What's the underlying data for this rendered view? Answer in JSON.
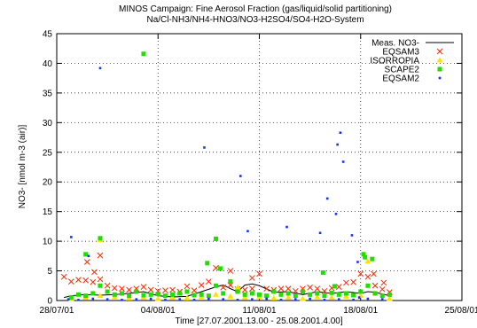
{
  "chart_data": {
    "type": "scatter",
    "title": [
      "MINOS Campaign: Fine Aerosol Fraction  (gas/liquid/solid partitioning)",
      "Na/Cl-NH3/NH4-HNO3/NO3-H2SO4/SO4-H2O-System"
    ],
    "xlabel": "Time [27.07.2001.13.00 - 25.08.2001.4.00]",
    "ylabel": "NO3- [nmol m-3 (air)]",
    "xlim": [
      "28/07/01",
      "25/08/01"
    ],
    "xticks": [
      "28/07/01",
      "04/08/01",
      "11/08/01",
      "18/08/01",
      "25/08/01"
    ],
    "ylim": [
      0,
      45
    ],
    "yticks": [
      0,
      5,
      10,
      15,
      20,
      25,
      30,
      35,
      40,
      45
    ],
    "legend_position": "top-right",
    "series": [
      {
        "name": "Meas. NO3-",
        "style": "line",
        "color": "#000000",
        "x": [
          0.5,
          1.0,
          2.0,
          3.0,
          4.0,
          5.0,
          6.0,
          7.0,
          8.0,
          9.0,
          10.0,
          11.0,
          11.5,
          12.0,
          12.5,
          13.0,
          13.5,
          14.0,
          15.0,
          16.0,
          17.0,
          18.0,
          19.0,
          20.0,
          21.0,
          21.5,
          22.0,
          23.0
        ],
        "y": [
          0.5,
          0.8,
          1.0,
          0.9,
          1.0,
          1.2,
          1.5,
          0.8,
          0.6,
          0.7,
          1.5,
          2.3,
          2.6,
          2.0,
          1.5,
          2.6,
          2.8,
          2.5,
          1.4,
          1.5,
          1.0,
          1.5,
          1.2,
          1.5,
          1.2,
          1.5,
          1.4,
          0.8
        ]
      },
      {
        "name": "EQSAM3",
        "style": "cross",
        "color": "#ff2a00",
        "x": [
          0.5,
          1.0,
          1.5,
          2.0,
          2.5,
          3.0,
          3.5,
          4.0,
          4.5,
          5.0,
          5.5,
          6.0,
          6.5,
          7.0,
          7.5,
          8.0,
          8.5,
          9.0,
          9.5,
          10.0,
          10.5,
          11.0,
          11.5,
          12.0,
          12.5,
          13.0,
          13.5,
          14.0,
          14.5,
          15.0,
          15.5,
          16.0,
          16.5,
          17.0,
          17.5,
          18.0,
          18.5,
          19.0,
          19.5,
          20.0,
          20.5,
          21.0,
          21.5,
          22.0,
          22.5,
          23.0,
          3.0,
          2.1,
          2.6,
          12.0,
          13.5,
          22.6,
          21.9
        ],
        "y": [
          4.0,
          3.2,
          3.5,
          3.4,
          3.1,
          3.6,
          2.5,
          2.1,
          2.0,
          1.8,
          2.0,
          2.3,
          1.8,
          1.6,
          1.7,
          1.8,
          1.5,
          2.4,
          1.7,
          2.6,
          3.2,
          5.5,
          2.2,
          2.6,
          1.9,
          1.8,
          2.0,
          4.5,
          2.0,
          1.8,
          2.0,
          2.0,
          1.6,
          2.0,
          2.2,
          2.0,
          1.6,
          2.1,
          2.3,
          3.0,
          3.1,
          4.5,
          4.0,
          2.5,
          1.9,
          1.4,
          7.6,
          6.5,
          4.8,
          5.0,
          3.8,
          3.0,
          4.5
        ]
      },
      {
        "name": "ISORROPIA",
        "style": "triangle",
        "color": "#ffe000",
        "x": [
          1.0,
          2.0,
          3.0,
          4.0,
          5.0,
          6.0,
          7.0,
          8.0,
          9.0,
          10.0,
          11.0,
          12.0,
          13.0,
          14.0,
          15.0,
          16.0,
          17.0,
          18.0,
          19.0,
          20.0,
          21.0,
          22.0,
          23.0,
          3.0,
          12.5,
          21.5
        ],
        "y": [
          0.3,
          0.5,
          0.8,
          0.6,
          0.4,
          0.5,
          0.3,
          0.5,
          0.4,
          0.6,
          1.0,
          0.7,
          0.5,
          0.6,
          0.4,
          0.5,
          0.3,
          0.6,
          0.5,
          0.7,
          0.8,
          1.2,
          0.3,
          10.2,
          2.2,
          6.6
        ]
      },
      {
        "name": "SCAPE2",
        "style": "square",
        "color": "#22dd00",
        "x": [
          1.0,
          1.5,
          2.0,
          2.5,
          3.0,
          3.5,
          4.0,
          4.5,
          5.0,
          5.5,
          6.0,
          6.5,
          7.0,
          7.5,
          8.0,
          8.5,
          9.0,
          9.5,
          10.0,
          10.5,
          11.0,
          11.5,
          12.0,
          12.5,
          13.0,
          13.5,
          14.0,
          14.5,
          15.0,
          15.5,
          16.0,
          16.5,
          17.0,
          17.5,
          18.0,
          18.5,
          19.0,
          19.5,
          20.0,
          20.5,
          21.0,
          21.5,
          22.0,
          22.5,
          23.0,
          3.0,
          6.0,
          2.0,
          11.0,
          10.4,
          11.3,
          18.4,
          21.3,
          21.8,
          21.2,
          19.2
        ],
        "y": [
          0.5,
          1.0,
          0.8,
          1.2,
          2.5,
          1.5,
          1.0,
          1.2,
          0.8,
          1.5,
          0.9,
          1.0,
          1.1,
          0.8,
          1.0,
          1.2,
          1.5,
          0.9,
          1.0,
          0.8,
          2.5,
          1.2,
          3.2,
          1.5,
          1.0,
          1.2,
          1.0,
          0.8,
          1.5,
          1.0,
          1.2,
          0.8,
          1.5,
          1.0,
          1.2,
          0.8,
          1.3,
          1.0,
          1.2,
          0.9,
          1.5,
          2.5,
          1.2,
          0.8,
          1.0,
          10.5,
          41.6,
          7.8,
          10.4,
          6.3,
          5.4,
          4.7,
          7.3,
          7.0,
          7.8,
          2.4
        ]
      },
      {
        "name": "EQSAM2",
        "style": "dot",
        "color": "#1133ff",
        "x": [
          0.8,
          1.5,
          2.5,
          3.5,
          4.5,
          5.5,
          6.5,
          7.5,
          8.5,
          9.5,
          10.5,
          11.5,
          12.5,
          13.5,
          14.5,
          15.5,
          16.5,
          17.5,
          18.5,
          19.5,
          20.5,
          21.5,
          22.5,
          1.0,
          2.2,
          3.0,
          10.2,
          12.7,
          13.2,
          15.9,
          18.2,
          18.7,
          19.3,
          19.4,
          19.6,
          19.8,
          20.4,
          20.8,
          20.9
        ],
        "y": [
          0.2,
          0.1,
          0.3,
          0.2,
          0.1,
          0.2,
          0.3,
          0.1,
          0.2,
          0.1,
          0.3,
          0.2,
          0.1,
          0.2,
          0.3,
          0.1,
          0.2,
          0.3,
          0.1,
          0.2,
          0.1,
          0.3,
          0.2,
          10.7,
          7.5,
          39.2,
          25.8,
          21.0,
          11.7,
          12.4,
          11.4,
          17.2,
          14.6,
          26.3,
          28.3,
          23.4,
          11.0,
          6.5,
          0.5
        ]
      }
    ]
  }
}
